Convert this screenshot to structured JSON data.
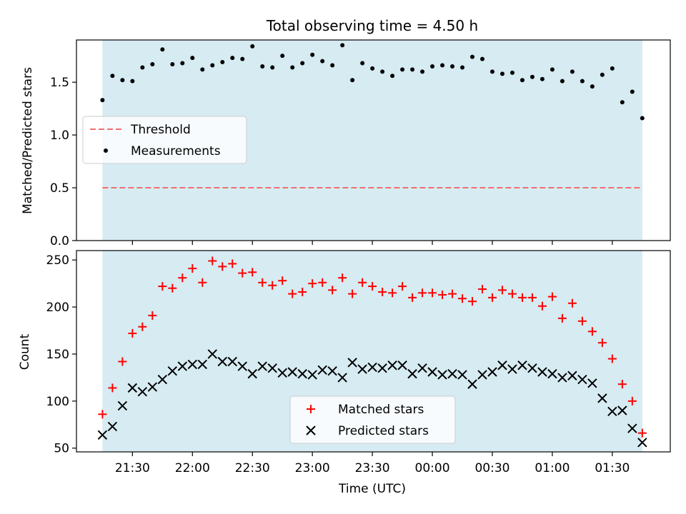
{
  "chart_data": [
    {
      "type": "scatter",
      "title": "Total observing time = 4.50 h",
      "xlabel": "",
      "ylabel": "Matched/Predicted stars",
      "ylim": [
        0,
        1.9
      ],
      "yticks": [
        "0.0",
        "0.5",
        "1.0",
        "1.5"
      ],
      "ytick_values": [
        0,
        0.5,
        1.0,
        1.5
      ],
      "threshold": 0.5,
      "shaded_range_minutes": [
        15,
        285
      ],
      "legend_position": "center-left",
      "series": [
        {
          "name": "Threshold",
          "style": "dashed-line",
          "color": "#f07070",
          "values": [
            0.5
          ]
        },
        {
          "name": "Measurements",
          "style": "dot",
          "color": "#000000",
          "x_minutes": [
            15,
            20,
            25,
            30,
            35,
            40,
            45,
            50,
            55,
            60,
            65,
            70,
            75,
            80,
            85,
            90,
            95,
            100,
            105,
            110,
            115,
            120,
            125,
            130,
            135,
            140,
            145,
            150,
            155,
            160,
            165,
            170,
            175,
            180,
            185,
            190,
            195,
            200,
            205,
            210,
            215,
            220,
            225,
            230,
            235,
            240,
            245,
            250,
            255,
            260,
            265,
            270,
            275,
            280,
            285
          ],
          "values": [
            1.33,
            1.56,
            1.52,
            1.51,
            1.64,
            1.67,
            1.81,
            1.67,
            1.68,
            1.73,
            1.62,
            1.66,
            1.69,
            1.73,
            1.72,
            1.84,
            1.65,
            1.64,
            1.75,
            1.64,
            1.68,
            1.76,
            1.7,
            1.66,
            1.85,
            1.52,
            1.68,
            1.63,
            1.6,
            1.56,
            1.62,
            1.62,
            1.6,
            1.65,
            1.66,
            1.65,
            1.64,
            1.74,
            1.72,
            1.6,
            1.58,
            1.59,
            1.52,
            1.55,
            1.53,
            1.62,
            1.51,
            1.6,
            1.51,
            1.46,
            1.57,
            1.63,
            1.31,
            1.41,
            1.16
          ]
        }
      ]
    },
    {
      "type": "scatter",
      "title": "",
      "xlabel": "Time (UTC)",
      "ylabel": "Count",
      "ylim": [
        46,
        260
      ],
      "yticks": [
        "50",
        "100",
        "150",
        "200",
        "250"
      ],
      "ytick_values": [
        50,
        100,
        150,
        200,
        250
      ],
      "xticks": [
        "21:30",
        "22:00",
        "22:30",
        "23:00",
        "23:30",
        "00:00",
        "00:30",
        "01:00",
        "01:30"
      ],
      "xtick_minutes": [
        30,
        60,
        90,
        120,
        150,
        180,
        210,
        240,
        270
      ],
      "x_range_minutes": [
        2,
        299
      ],
      "shaded_range_minutes": [
        15,
        285
      ],
      "legend_position": "lower-center",
      "series": [
        {
          "name": "Matched stars",
          "style": "plus",
          "color": "#ff0000",
          "x_minutes": [
            15,
            20,
            25,
            30,
            35,
            40,
            45,
            50,
            55,
            60,
            65,
            70,
            75,
            80,
            85,
            90,
            95,
            100,
            105,
            110,
            115,
            120,
            125,
            130,
            135,
            140,
            145,
            150,
            155,
            160,
            165,
            170,
            175,
            180,
            185,
            190,
            195,
            200,
            205,
            210,
            215,
            220,
            225,
            230,
            235,
            240,
            245,
            250,
            255,
            260,
            265,
            270,
            275,
            280,
            285
          ],
          "values": [
            86,
            114,
            142,
            172,
            179,
            191,
            222,
            220,
            231,
            241,
            226,
            249,
            243,
            246,
            236,
            237,
            226,
            223,
            228,
            214,
            216,
            225,
            226,
            218,
            231,
            214,
            226,
            222,
            216,
            215,
            222,
            210,
            215,
            215,
            213,
            214,
            209,
            206,
            219,
            210,
            218,
            214,
            210,
            210,
            201,
            211,
            188,
            204,
            185,
            174,
            162,
            145,
            118,
            100,
            66
          ]
        },
        {
          "name": "Predicted stars",
          "style": "x",
          "color": "#000000",
          "x_minutes": [
            15,
            20,
            25,
            30,
            35,
            40,
            45,
            50,
            55,
            60,
            65,
            70,
            75,
            80,
            85,
            90,
            95,
            100,
            105,
            110,
            115,
            120,
            125,
            130,
            135,
            140,
            145,
            150,
            155,
            160,
            165,
            170,
            175,
            180,
            185,
            190,
            195,
            200,
            205,
            210,
            215,
            220,
            225,
            230,
            235,
            240,
            245,
            250,
            255,
            260,
            265,
            270,
            275,
            280,
            285
          ],
          "values": [
            64,
            73,
            95,
            114,
            110,
            115,
            123,
            132,
            137,
            139,
            139,
            150,
            142,
            142,
            137,
            129,
            137,
            135,
            130,
            131,
            129,
            128,
            133,
            132,
            125,
            141,
            134,
            136,
            135,
            138,
            138,
            129,
            135,
            131,
            128,
            129,
            128,
            118,
            128,
            131,
            138,
            134,
            138,
            135,
            131,
            129,
            125,
            127,
            123,
            119,
            103,
            89,
            90,
            71,
            56
          ]
        }
      ]
    }
  ]
}
